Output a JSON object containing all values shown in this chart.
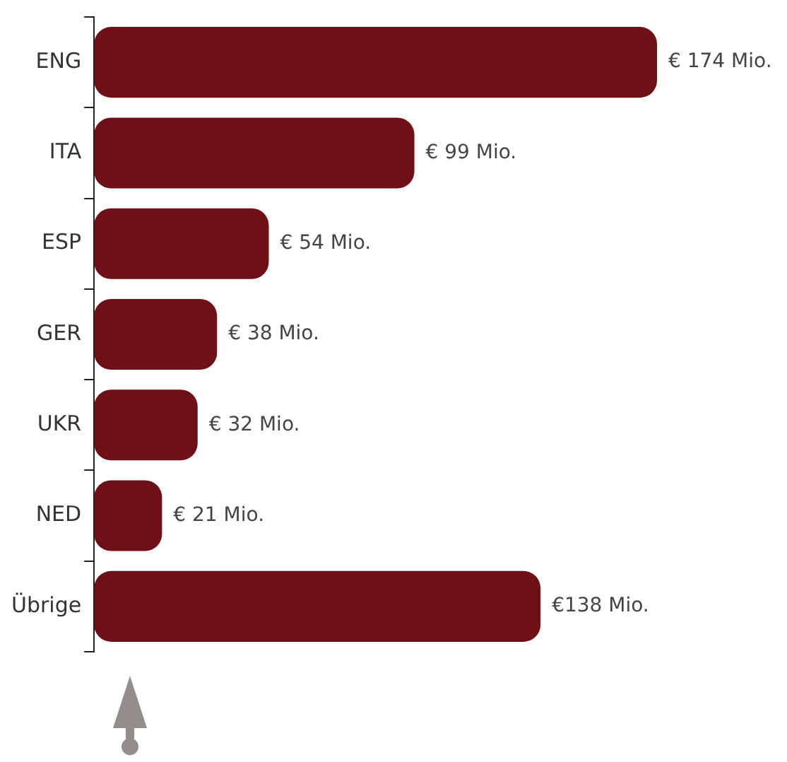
{
  "chart_data": {
    "type": "bar",
    "orientation": "horizontal",
    "categories": [
      "ENG",
      "ITA",
      "ESP",
      "GER",
      "UKR",
      "NED",
      "Übrige"
    ],
    "values": [
      174,
      99,
      54,
      38,
      32,
      21,
      138
    ],
    "value_labels": [
      "€ 174 Mio.",
      "€ 99 Mio.",
      "€ 54 Mio.",
      "€ 38 Mio.",
      "€ 32 Mio.",
      "€ 21 Mio.",
      "€138 Mio."
    ],
    "color": "#6e1016",
    "grid": false,
    "legend": false,
    "tick_labels": "y"
  }
}
